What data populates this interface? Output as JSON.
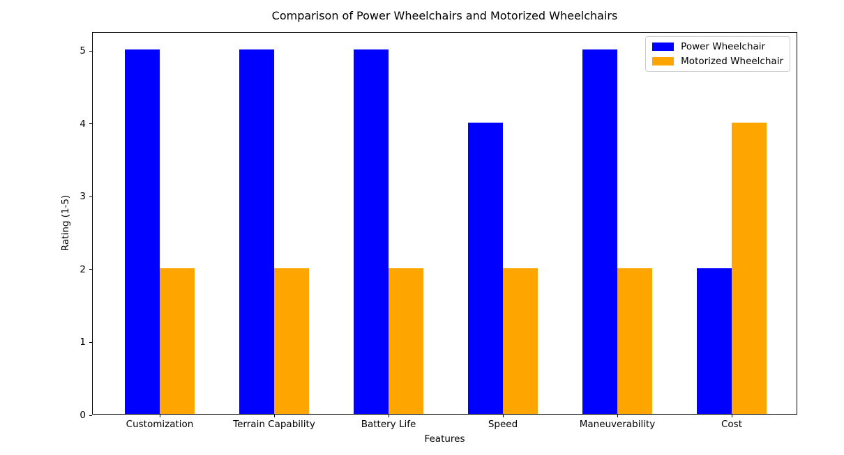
{
  "chart_data": {
    "type": "bar",
    "title": "Comparison of Power Wheelchairs and Motorized Wheelchairs",
    "xlabel": "Features",
    "ylabel": "Rating (1-5)",
    "categories": [
      "Customization",
      "Terrain Capability",
      "Battery Life",
      "Speed",
      "Maneuverability",
      "Cost"
    ],
    "series": [
      {
        "name": "Power Wheelchair",
        "color": "#0000ff",
        "values": [
          5,
          5,
          5,
          4,
          5,
          2
        ]
      },
      {
        "name": "Motorized Wheelchair",
        "color": "#ffa500",
        "values": [
          2,
          2,
          2,
          2,
          2,
          4
        ]
      }
    ],
    "yticks": [
      0,
      1,
      2,
      3,
      4,
      5
    ],
    "ylim": [
      0,
      5.25
    ],
    "grid": false,
    "legend_position": "upper right",
    "background_color": "#ffffff",
    "axis_color": "#000000"
  }
}
